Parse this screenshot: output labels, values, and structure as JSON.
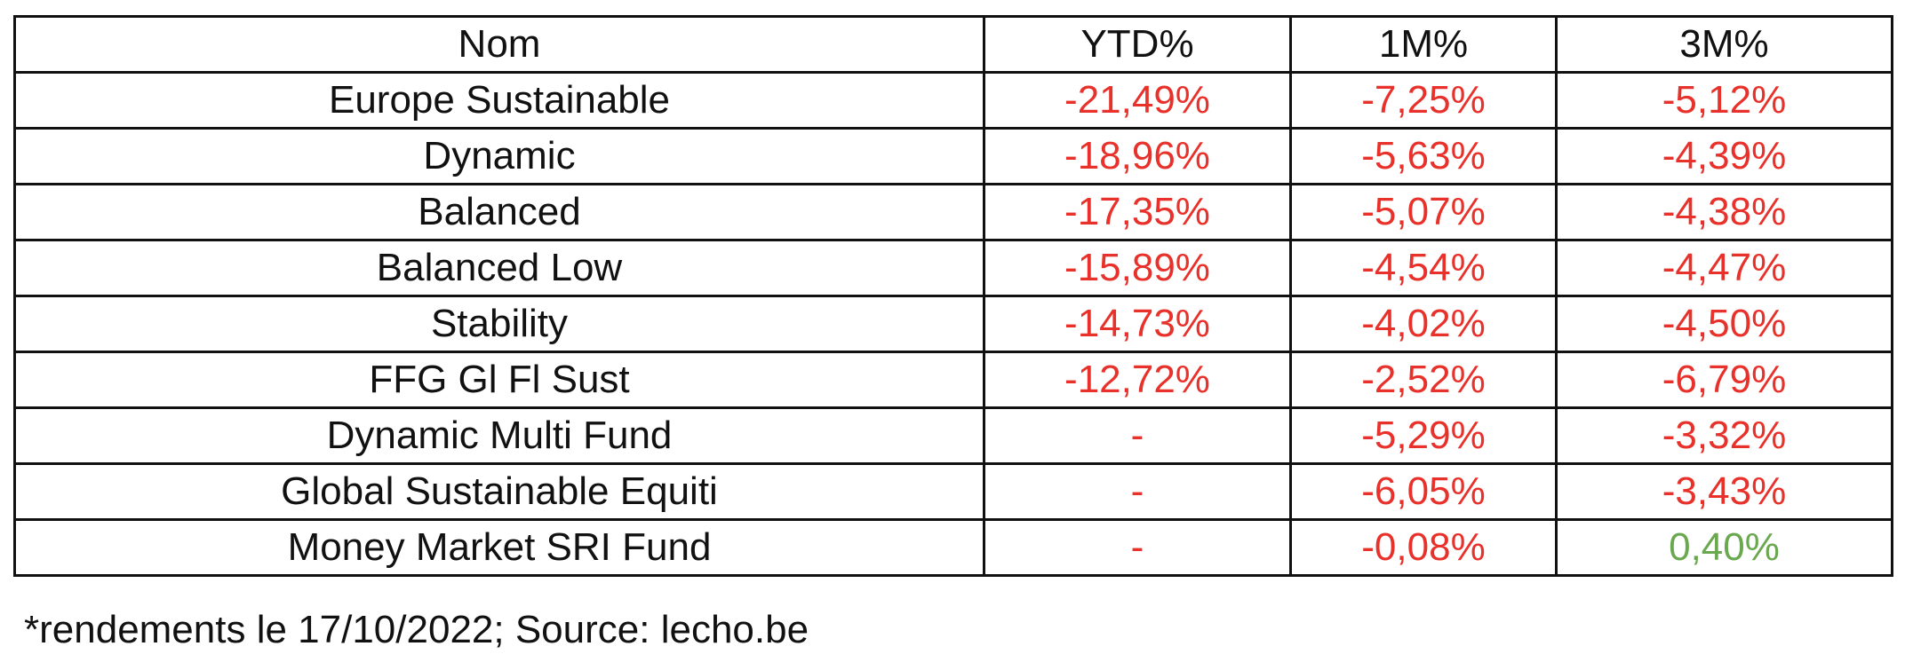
{
  "colors": {
    "text": "#111111",
    "negative": "#e8312a",
    "positive": "#6aa84f",
    "border": "#111111"
  },
  "table": {
    "headers": [
      "Nom",
      "YTD%",
      "1M%",
      "3M%"
    ],
    "rows": [
      {
        "name": "Europe Sustainable",
        "ytd": "-21,49%",
        "m1": "-7,25%",
        "m3": "-5,12%"
      },
      {
        "name": "Dynamic",
        "ytd": "-18,96%",
        "m1": "-5,63%",
        "m3": "-4,39%"
      },
      {
        "name": "Balanced",
        "ytd": "-17,35%",
        "m1": "-5,07%",
        "m3": "-4,38%"
      },
      {
        "name": "Balanced Low",
        "ytd": "-15,89%",
        "m1": "-4,54%",
        "m3": "-4,47%"
      },
      {
        "name": "Stability",
        "ytd": "-14,73%",
        "m1": "-4,02%",
        "m3": "-4,50%"
      },
      {
        "name": "FFG Gl Fl Sust",
        "ytd": "-12,72%",
        "m1": "-2,52%",
        "m3": "-6,79%"
      },
      {
        "name": "Dynamic Multi Fund",
        "ytd": "-",
        "m1": "-5,29%",
        "m3": "-3,32%"
      },
      {
        "name": "Global Sustainable Equiti",
        "ytd": "-",
        "m1": "-6,05%",
        "m3": "-3,43%"
      },
      {
        "name": "Money Market SRI Fund",
        "ytd": "-",
        "m1": "-0,08%",
        "m3": "0,40%"
      }
    ]
  },
  "footnote": "*rendements le 17/10/2022; Source: lecho.be"
}
